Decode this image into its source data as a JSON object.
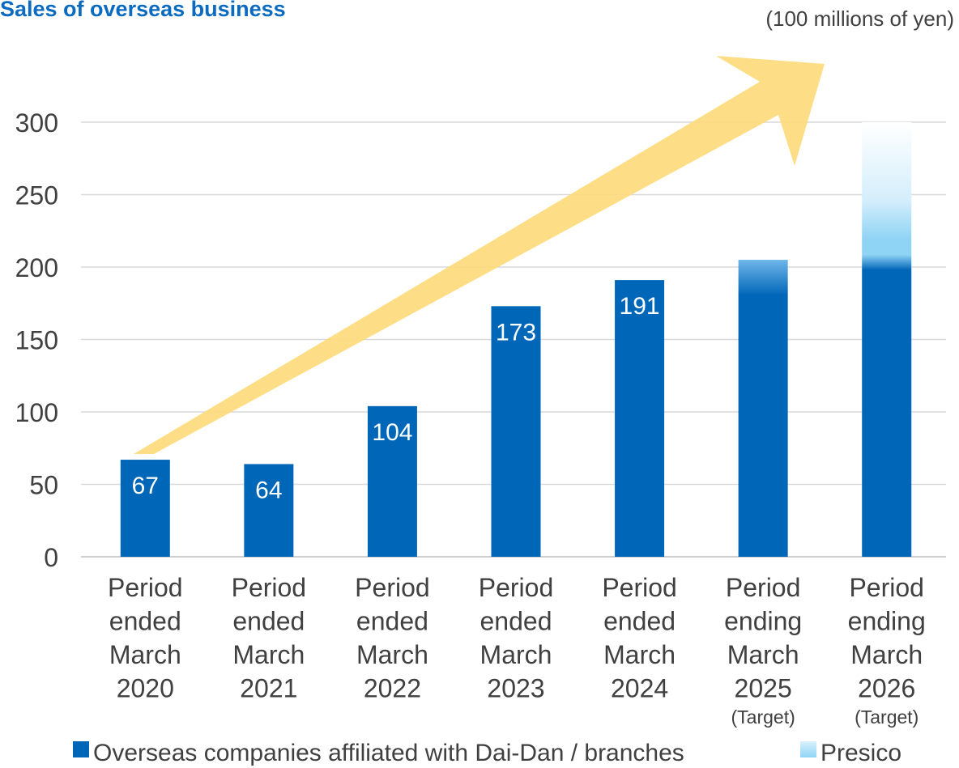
{
  "chart_data": {
    "type": "bar",
    "title": "Sales of overseas business",
    "unit_label": "(100 millions of yen)",
    "categories": [
      [
        "Period",
        "ended",
        "March",
        "2020"
      ],
      [
        "Period",
        "ended",
        "March",
        "2021"
      ],
      [
        "Period",
        "ended",
        "March",
        "2022"
      ],
      [
        "Period",
        "ended",
        "March",
        "2023"
      ],
      [
        "Period",
        "ended",
        "March",
        "2024"
      ],
      [
        "Period",
        "ending",
        "March",
        "2025"
      ],
      [
        "Period",
        "ending",
        "March",
        "2026"
      ]
    ],
    "category_notes": [
      "",
      "",
      "",
      "",
      "",
      "(Target)",
      "(Target)"
    ],
    "series": [
      {
        "name": "Overseas companies affiliated with Dai-Dan / branches",
        "color": "#0066b8",
        "values": [
          67,
          64,
          104,
          173,
          191,
          205,
          205
        ]
      },
      {
        "name": "Presico",
        "color": "#8fd3f5",
        "values": [
          0,
          0,
          0,
          0,
          0,
          0,
          95
        ]
      }
    ],
    "data_labels": [
      "67",
      "64",
      "104",
      "173",
      "191",
      "",
      ""
    ],
    "ylim": [
      0,
      300
    ],
    "yticks": [
      0,
      50,
      100,
      150,
      200,
      250,
      300
    ],
    "grid": true,
    "legend_position": "bottom",
    "annotation": "upward trend arrow",
    "arrow_color": "#fddb7c"
  }
}
